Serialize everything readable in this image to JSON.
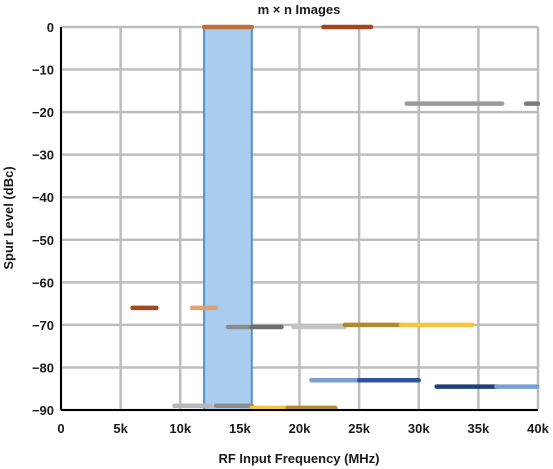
{
  "chart_data": {
    "type": "scatter",
    "title": "m × n Images",
    "xlabel": "RF Input Frequency (MHz)",
    "ylabel": "Spur Level (dBc)",
    "xlim": [
      0,
      40000
    ],
    "ylim": [
      -90,
      0
    ],
    "x_ticks": [
      0,
      5000,
      10000,
      15000,
      20000,
      25000,
      30000,
      35000,
      40000
    ],
    "x_tick_labels": [
      "0",
      "5k",
      "10k",
      "15k",
      "20k",
      "25k",
      "30k",
      "35k",
      "40k"
    ],
    "y_ticks": [
      0,
      -10,
      -20,
      -30,
      -40,
      -50,
      -60,
      -70,
      -80,
      -90
    ],
    "y_tick_labels": [
      "0",
      "−10",
      "−20",
      "−30",
      "−40",
      "−50",
      "−60",
      "−70",
      "−80",
      "−90"
    ],
    "grid": true,
    "highlight_region": {
      "x": [
        12000,
        16000
      ],
      "y": [
        -90,
        0
      ],
      "fill": "#a9cdee",
      "stroke": "#5b8fc7"
    },
    "segments": [
      {
        "x": [
          12000,
          16000
        ],
        "y": 0,
        "color": "#c0703a"
      },
      {
        "x": [
          22000,
          26000
        ],
        "y": 0,
        "color": "#a4471e"
      },
      {
        "x": [
          29000,
          37000
        ],
        "y": -18,
        "color": "#9b9b9b"
      },
      {
        "x": [
          39000,
          40000
        ],
        "y": -18,
        "color": "#7a7a7a"
      },
      {
        "x": [
          6000,
          8000
        ],
        "y": -66,
        "color": "#a4471e"
      },
      {
        "x": [
          11000,
          13000
        ],
        "y": -66,
        "color": "#e0a070"
      },
      {
        "x": [
          14000,
          16000
        ],
        "y": -70.5,
        "color": "#8c8c8c"
      },
      {
        "x": [
          16000,
          18500
        ],
        "y": -70.5,
        "color": "#6e6e6e"
      },
      {
        "x": [
          19500,
          23800
        ],
        "y": -70.5,
        "color": "#c4c4c4"
      },
      {
        "x": [
          23800,
          28500
        ],
        "y": -70,
        "color": "#b08a2e"
      },
      {
        "x": [
          28500,
          34500
        ],
        "y": -70,
        "color": "#f5c542"
      },
      {
        "x": [
          21000,
          25000
        ],
        "y": -83,
        "color": "#7a9dd6"
      },
      {
        "x": [
          25000,
          30000
        ],
        "y": -83,
        "color": "#2f5597"
      },
      {
        "x": [
          31500,
          36500
        ],
        "y": -84.5,
        "color": "#1f3e7a"
      },
      {
        "x": [
          36500,
          40000
        ],
        "y": -84.5,
        "color": "#7a9dd6"
      },
      {
        "x": [
          9500,
          12500
        ],
        "y": -89,
        "color": "#b8b8b8"
      },
      {
        "x": [
          13000,
          16000
        ],
        "y": -89,
        "color": "#8c8c8c"
      },
      {
        "x": [
          16000,
          19000
        ],
        "y": -89.5,
        "color": "#f5c542"
      },
      {
        "x": [
          19000,
          23000
        ],
        "y": -89.5,
        "color": "#b08a2e"
      }
    ]
  }
}
